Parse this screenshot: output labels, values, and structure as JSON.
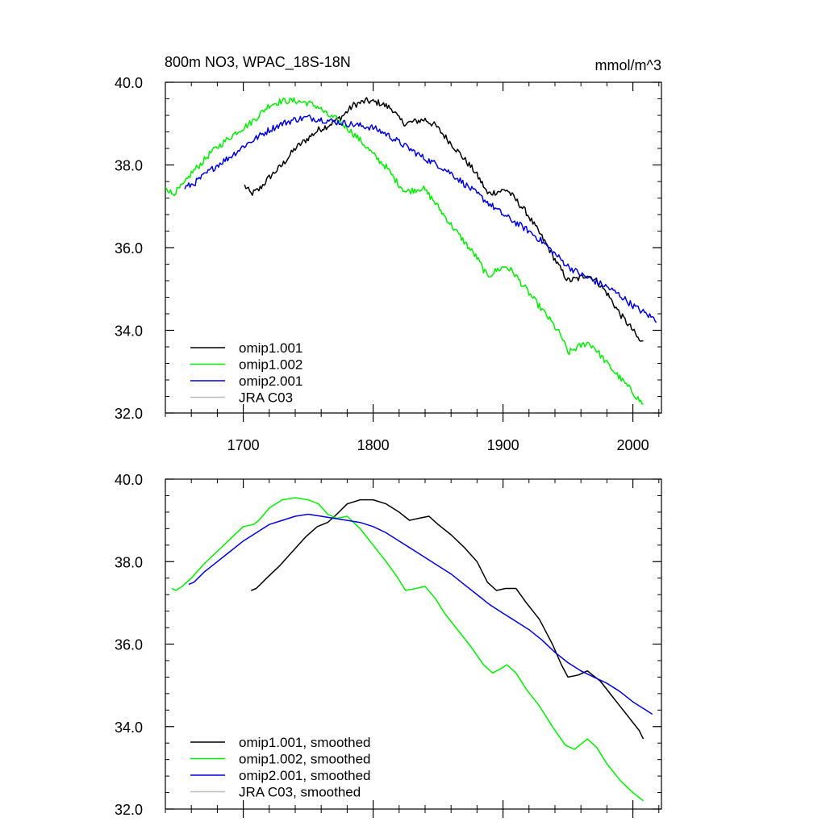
{
  "chart_data": [
    {
      "type": "line",
      "title": "800m NO3, WPAC_18S-18N",
      "unit_label": "mmol/m^3",
      "xlim": [
        1640,
        2022
      ],
      "ylim": [
        32.0,
        40.0
      ],
      "x_ticks": [
        1700,
        1800,
        1900,
        2000
      ],
      "x_tick_labels": [
        "1700",
        "1800",
        "1900",
        "2000"
      ],
      "y_ticks": [
        32.0,
        34.0,
        36.0,
        38.0,
        40.0
      ],
      "y_tick_labels": [
        "32.0",
        "34.0",
        "36.0",
        "38.0",
        "40.0"
      ],
      "legend_position": "bottom-left",
      "series": [
        {
          "name": "omip1.001",
          "color": "#000000",
          "noisy": true,
          "x": [
            1701,
            1706,
            1712,
            1720,
            1730,
            1740,
            1750,
            1758,
            1765,
            1770,
            1777,
            1785,
            1795,
            1805,
            1815,
            1820,
            1825,
            1832,
            1840,
            1848,
            1855,
            1862,
            1870,
            1878,
            1885,
            1888,
            1895,
            1903,
            1910,
            1918,
            1925,
            1935,
            1942,
            1950,
            1958,
            1965,
            1972,
            1980,
            1990,
            2000,
            2005,
            2008
          ],
          "y": [
            37.5,
            37.3,
            37.4,
            37.7,
            38.0,
            38.4,
            38.65,
            38.85,
            38.95,
            39.05,
            39.2,
            39.45,
            39.55,
            39.5,
            39.35,
            39.1,
            39.0,
            39.05,
            39.1,
            38.95,
            38.7,
            38.45,
            38.15,
            37.85,
            37.5,
            37.3,
            37.35,
            37.4,
            37.15,
            36.85,
            36.5,
            36.0,
            35.6,
            35.2,
            35.25,
            35.35,
            35.2,
            34.9,
            34.4,
            34.0,
            33.75,
            33.7
          ]
        },
        {
          "name": "omip1.002",
          "color": "#00ee00",
          "noisy": true,
          "x": [
            1640,
            1645,
            1650,
            1655,
            1660,
            1668,
            1675,
            1685,
            1695,
            1705,
            1712,
            1720,
            1730,
            1740,
            1750,
            1758,
            1765,
            1772,
            1780,
            1790,
            1800,
            1810,
            1818,
            1825,
            1832,
            1838,
            1845,
            1852,
            1860,
            1870,
            1880,
            1888,
            1895,
            1902,
            1908,
            1915,
            1925,
            1935,
            1945,
            1950,
            1958,
            1965,
            1970,
            1980,
            1990,
            2000,
            2008
          ],
          "y": [
            37.5,
            37.3,
            37.4,
            37.55,
            37.8,
            38.05,
            38.3,
            38.55,
            38.8,
            39.0,
            39.2,
            39.45,
            39.55,
            39.55,
            39.5,
            39.4,
            39.2,
            39.1,
            38.9,
            38.6,
            38.25,
            37.95,
            37.6,
            37.35,
            37.4,
            37.45,
            37.2,
            36.9,
            36.55,
            36.15,
            35.75,
            35.3,
            35.45,
            35.55,
            35.4,
            35.1,
            34.7,
            34.3,
            33.85,
            33.45,
            33.6,
            33.7,
            33.6,
            33.2,
            32.85,
            32.5,
            32.2
          ]
        },
        {
          "name": "omip2.001",
          "color": "#0000dd",
          "noisy": true,
          "x": [
            1655,
            1662,
            1670,
            1680,
            1690,
            1700,
            1710,
            1720,
            1730,
            1740,
            1750,
            1760,
            1770,
            1780,
            1790,
            1800,
            1810,
            1820,
            1830,
            1840,
            1850,
            1860,
            1870,
            1880,
            1890,
            1900,
            1910,
            1920,
            1930,
            1940,
            1950,
            1960,
            1970,
            1980,
            1990,
            2000,
            2010,
            2018
          ],
          "y": [
            37.45,
            37.55,
            37.75,
            38.0,
            38.2,
            38.45,
            38.65,
            38.85,
            39.0,
            39.1,
            39.15,
            39.1,
            39.05,
            39.0,
            38.95,
            38.9,
            38.75,
            38.55,
            38.35,
            38.15,
            38.0,
            37.8,
            37.55,
            37.3,
            37.05,
            36.8,
            36.6,
            36.4,
            36.15,
            35.85,
            35.55,
            35.35,
            35.2,
            35.05,
            34.85,
            34.6,
            34.4,
            34.25
          ]
        },
        {
          "name": "JRA C03",
          "color": "#bbbbbb",
          "noisy": false,
          "x": [],
          "y": []
        }
      ]
    },
    {
      "type": "line",
      "xlim": [
        1640,
        2022
      ],
      "ylim": [
        32.0,
        40.0
      ],
      "x_ticks": [
        1700,
        1800,
        1900,
        2000
      ],
      "y_ticks": [
        32.0,
        34.0,
        36.0,
        38.0,
        40.0
      ],
      "y_tick_labels": [
        "32.0",
        "34.0",
        "36.0",
        "38.0",
        "40.0"
      ],
      "legend_position": "bottom-left",
      "series": [
        {
          "name": "omip1.001, smoothed",
          "color": "#000000",
          "noisy": false,
          "x": [
            1706,
            1710,
            1718,
            1728,
            1738,
            1748,
            1757,
            1765,
            1772,
            1780,
            1790,
            1800,
            1810,
            1820,
            1828,
            1835,
            1843,
            1850,
            1860,
            1870,
            1880,
            1888,
            1895,
            1902,
            1910,
            1918,
            1928,
            1938,
            1945,
            1950,
            1958,
            1965,
            1975,
            1985,
            1995,
            2005,
            2008
          ],
          "y": [
            37.3,
            37.35,
            37.6,
            37.9,
            38.25,
            38.6,
            38.85,
            38.95,
            39.15,
            39.4,
            39.5,
            39.5,
            39.4,
            39.2,
            39.0,
            39.05,
            39.1,
            38.9,
            38.65,
            38.35,
            38.0,
            37.5,
            37.3,
            37.35,
            37.35,
            37.0,
            36.6,
            36.0,
            35.5,
            35.2,
            35.25,
            35.35,
            35.1,
            34.7,
            34.3,
            33.9,
            33.7
          ]
        },
        {
          "name": "omip1.002, smoothed",
          "color": "#00ee00",
          "noisy": false,
          "x": [
            1645,
            1648,
            1653,
            1660,
            1670,
            1680,
            1690,
            1700,
            1708,
            1712,
            1720,
            1730,
            1740,
            1750,
            1758,
            1765,
            1772,
            1780,
            1790,
            1800,
            1810,
            1818,
            1825,
            1833,
            1840,
            1848,
            1855,
            1865,
            1875,
            1885,
            1892,
            1898,
            1903,
            1910,
            1918,
            1928,
            1938,
            1948,
            1955,
            1965,
            1972,
            1980,
            1990,
            2000,
            2008
          ],
          "y": [
            37.35,
            37.3,
            37.4,
            37.6,
            37.95,
            38.25,
            38.55,
            38.85,
            38.9,
            39.0,
            39.3,
            39.5,
            39.55,
            39.5,
            39.4,
            39.15,
            39.05,
            39.1,
            38.8,
            38.4,
            38.0,
            37.65,
            37.3,
            37.35,
            37.4,
            37.1,
            36.75,
            36.35,
            35.95,
            35.5,
            35.3,
            35.4,
            35.5,
            35.3,
            34.9,
            34.5,
            34.0,
            33.55,
            33.45,
            33.7,
            33.5,
            33.1,
            32.7,
            32.4,
            32.2
          ]
        },
        {
          "name": "omip2.001, smoothed",
          "color": "#0000dd",
          "noisy": false,
          "x": [
            1658,
            1662,
            1670,
            1680,
            1690,
            1700,
            1710,
            1720,
            1730,
            1740,
            1750,
            1760,
            1770,
            1780,
            1790,
            1800,
            1810,
            1820,
            1830,
            1840,
            1850,
            1860,
            1870,
            1880,
            1890,
            1900,
            1910,
            1920,
            1930,
            1940,
            1950,
            1960,
            1970,
            1980,
            1990,
            2000,
            2010,
            2015
          ],
          "y": [
            37.45,
            37.5,
            37.75,
            38.0,
            38.25,
            38.5,
            38.7,
            38.9,
            39.0,
            39.1,
            39.15,
            39.1,
            39.05,
            39.0,
            38.95,
            38.85,
            38.7,
            38.5,
            38.3,
            38.1,
            37.9,
            37.7,
            37.45,
            37.2,
            36.95,
            36.75,
            36.55,
            36.35,
            36.1,
            35.8,
            35.55,
            35.35,
            35.2,
            35.05,
            34.85,
            34.6,
            34.4,
            34.3
          ]
        },
        {
          "name": "JRA C03, smoothed",
          "color": "#bbbbbb",
          "noisy": false,
          "x": [],
          "y": []
        }
      ]
    }
  ]
}
